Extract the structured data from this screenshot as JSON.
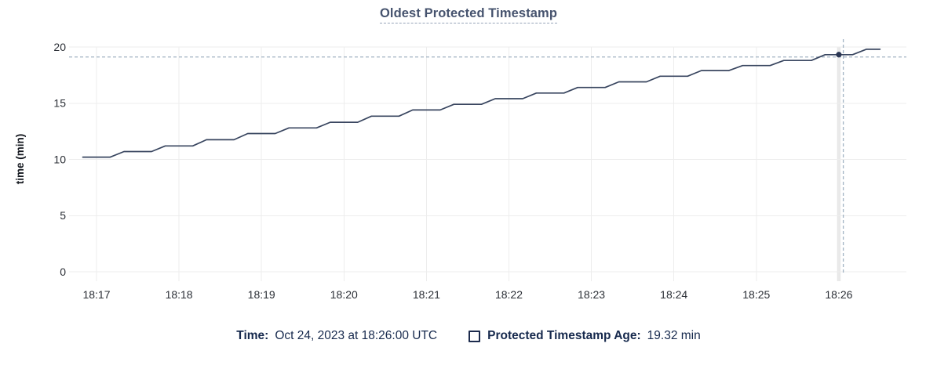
{
  "title": "Oldest Protected Timestamp",
  "legend": {
    "time_label": "Time:",
    "time_value": "Oct 24, 2023 at 18:26:00 UTC",
    "series_label": "Protected Timestamp Age:",
    "series_value": "19.32 min",
    "series_checkbox_icon": "unchecked-square-icon",
    "series_checkbox_state": "unchecked"
  },
  "colors": {
    "line": "#38455f",
    "hover_dot": "#2b3754",
    "crosshair_dash": "#a3b4c4",
    "gridline": "#ededed",
    "hover_band": "#e7e7e7",
    "title_text": "#46536e",
    "title_underline": "#97a4b8",
    "legend_text": "#16294d",
    "tick_text": "#2b2f36",
    "axis_label_text": "#14181f"
  },
  "chart_data": {
    "type": "line",
    "title": "Oldest Protected Timestamp",
    "xlabel": "",
    "ylabel": "time (min)",
    "ylim": [
      0,
      20
    ],
    "y_ticks": [
      0,
      5,
      10,
      15,
      20
    ],
    "x_tick_labels": [
      "18:17",
      "18:18",
      "18:19",
      "18:20",
      "18:21",
      "18:22",
      "18:23",
      "18:24",
      "18:25",
      "18:26"
    ],
    "grid": true,
    "legend_position": "bottom-center",
    "series": [
      {
        "name": "Protected Timestamp Age",
        "unit": "min",
        "x": [
          "18:16:50",
          "18:17:00",
          "18:17:10",
          "18:17:20",
          "18:17:30",
          "18:17:40",
          "18:17:50",
          "18:18:00",
          "18:18:10",
          "18:18:20",
          "18:18:30",
          "18:18:40",
          "18:18:50",
          "18:19:00",
          "18:19:10",
          "18:19:20",
          "18:19:30",
          "18:19:40",
          "18:19:50",
          "18:20:00",
          "18:20:10",
          "18:20:20",
          "18:20:30",
          "18:20:40",
          "18:20:50",
          "18:21:00",
          "18:21:10",
          "18:21:20",
          "18:21:30",
          "18:21:40",
          "18:21:50",
          "18:22:00",
          "18:22:10",
          "18:22:20",
          "18:22:30",
          "18:22:40",
          "18:22:50",
          "18:23:00",
          "18:23:10",
          "18:23:20",
          "18:23:30",
          "18:23:40",
          "18:23:50",
          "18:24:00",
          "18:24:10",
          "18:24:20",
          "18:24:30",
          "18:24:40",
          "18:24:50",
          "18:25:00",
          "18:25:10",
          "18:25:20",
          "18:25:30",
          "18:25:40",
          "18:25:50",
          "18:26:00",
          "18:26:10",
          "18:26:20",
          "18:26:30"
        ],
        "values": [
          10.2,
          10.2,
          10.2,
          10.7,
          10.7,
          10.7,
          11.2,
          11.2,
          11.2,
          11.75,
          11.75,
          11.75,
          12.3,
          12.3,
          12.3,
          12.8,
          12.8,
          12.8,
          13.3,
          13.3,
          13.3,
          13.85,
          13.85,
          13.85,
          14.4,
          14.4,
          14.4,
          14.9,
          14.9,
          14.9,
          15.4,
          15.4,
          15.4,
          15.9,
          15.9,
          15.9,
          16.4,
          16.4,
          16.4,
          16.9,
          16.9,
          16.9,
          17.4,
          17.4,
          17.4,
          17.9,
          17.9,
          17.9,
          18.35,
          18.35,
          18.35,
          18.8,
          18.8,
          18.8,
          19.32,
          19.32,
          19.32,
          19.8,
          19.8
        ]
      }
    ],
    "hover": {
      "x": "18:26:00",
      "value": 19.32,
      "point_index": 55
    }
  }
}
